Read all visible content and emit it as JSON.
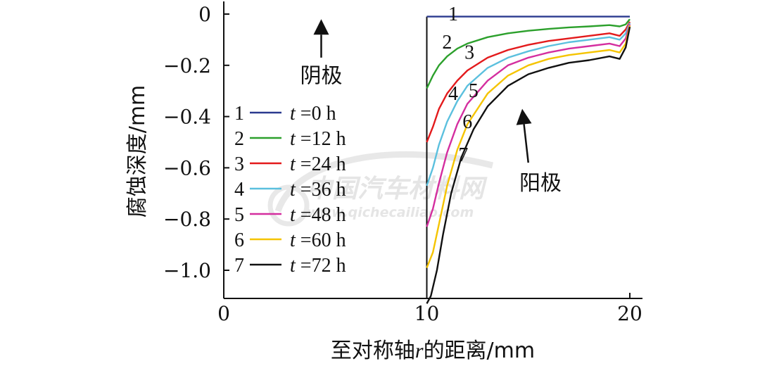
{
  "chart_data": {
    "type": "line",
    "xlabel": "至对称轴r的距离/mm",
    "xlabel_prefix": "至对称轴",
    "xlabel_var": "r",
    "xlabel_suffix": "的距离/mm",
    "ylabel": "腐蚀深度/mm",
    "xlim": [
      0,
      20
    ],
    "ylim": [
      -1.15,
      0.03
    ],
    "x_ticks": [
      0,
      10,
      20
    ],
    "x_tick_labels": [
      "0",
      "10",
      "20"
    ],
    "y_ticks": [
      0,
      -0.2,
      -0.4,
      -0.6,
      -0.8,
      -1.0
    ],
    "y_tick_labels": [
      "0",
      "−0.2",
      "−0.4",
      "−0.6",
      "−0.8",
      "−1.0"
    ],
    "grid": false,
    "legend_position": "left",
    "series": [
      {
        "name": "t =0 h",
        "number": "1",
        "var": "t",
        "rest": " =0 h",
        "color": "#2b3a8f",
        "x": [
          10,
          20
        ],
        "y": [
          -0.01,
          -0.01
        ]
      },
      {
        "name": "t =12 h",
        "number": "2",
        "var": "t",
        "rest": " =12 h",
        "color": "#2ca02c",
        "x": [
          10,
          10.3,
          10.6,
          11,
          11.5,
          12,
          13,
          14,
          15,
          16,
          17,
          18,
          19,
          19.5,
          19.8,
          20
        ],
        "y": [
          -0.29,
          -0.24,
          -0.2,
          -0.165,
          -0.135,
          -0.115,
          -0.09,
          -0.075,
          -0.065,
          -0.058,
          -0.052,
          -0.048,
          -0.043,
          -0.048,
          -0.04,
          -0.02
        ]
      },
      {
        "name": "t =24 h",
        "number": "3",
        "var": "t",
        "rest": " =24 h",
        "color": "#e31a1c",
        "x": [
          10,
          10.3,
          10.6,
          11,
          11.5,
          12,
          13,
          14,
          15,
          16,
          17,
          18,
          19,
          19.5,
          19.8,
          20
        ],
        "y": [
          -0.5,
          -0.44,
          -0.37,
          -0.31,
          -0.26,
          -0.22,
          -0.17,
          -0.14,
          -0.12,
          -0.105,
          -0.095,
          -0.085,
          -0.075,
          -0.085,
          -0.06,
          -0.03
        ]
      },
      {
        "name": "t =36 h",
        "number": "4",
        "var": "t",
        "rest": " =36 h",
        "color": "#5bc0de",
        "x": [
          10,
          10.3,
          10.6,
          11,
          11.5,
          12,
          13,
          14,
          15,
          16,
          17,
          18,
          19,
          19.5,
          19.8,
          20
        ],
        "y": [
          -0.67,
          -0.6,
          -0.51,
          -0.42,
          -0.34,
          -0.28,
          -0.21,
          -0.17,
          -0.145,
          -0.125,
          -0.11,
          -0.1,
          -0.09,
          -0.1,
          -0.075,
          -0.035
        ]
      },
      {
        "name": "t =48 h",
        "number": "5",
        "var": "t",
        "rest": " =48 h",
        "color": "#d42e9f",
        "x": [
          10,
          10.3,
          10.6,
          11,
          11.5,
          12,
          13,
          14,
          15,
          16,
          17,
          18,
          19,
          19.5,
          19.8,
          20
        ],
        "y": [
          -0.83,
          -0.76,
          -0.66,
          -0.54,
          -0.43,
          -0.35,
          -0.26,
          -0.2,
          -0.17,
          -0.15,
          -0.135,
          -0.125,
          -0.115,
          -0.125,
          -0.095,
          -0.04
        ]
      },
      {
        "name": "t =60 h",
        "number": "6",
        "var": "t",
        "rest": " =60 h",
        "color": "#f5c400",
        "x": [
          10,
          10.3,
          10.6,
          11,
          11.5,
          12,
          13,
          14,
          15,
          16,
          17,
          18,
          19,
          19.5,
          19.8,
          20
        ],
        "y": [
          -0.99,
          -0.93,
          -0.82,
          -0.67,
          -0.53,
          -0.43,
          -0.31,
          -0.24,
          -0.2,
          -0.175,
          -0.16,
          -0.15,
          -0.14,
          -0.15,
          -0.115,
          -0.045
        ]
      },
      {
        "name": "t =72 h",
        "number": "7",
        "var": "t",
        "rest": " =72 h",
        "color": "#111111",
        "x": [
          10,
          10.2,
          10.5,
          10.8,
          11.2,
          11.7,
          12.3,
          13,
          14,
          15,
          16,
          17,
          18,
          19,
          19.5,
          19.8,
          20
        ],
        "y": [
          -1.13,
          -1.1,
          -1.0,
          -0.86,
          -0.7,
          -0.56,
          -0.45,
          -0.36,
          -0.28,
          -0.235,
          -0.21,
          -0.19,
          -0.18,
          -0.165,
          -0.175,
          -0.13,
          -0.05
        ]
      }
    ],
    "curve_labels": [
      {
        "text": "1",
        "x": 11.3,
        "y": 0.0
      },
      {
        "text": "2",
        "x": 11.0,
        "y": -0.11
      },
      {
        "text": "3",
        "x": 12.1,
        "y": -0.15
      },
      {
        "text": "4",
        "x": 11.3,
        "y": -0.31
      },
      {
        "text": "5",
        "x": 12.3,
        "y": -0.3
      },
      {
        "text": "6",
        "x": 12.0,
        "y": -0.42
      },
      {
        "text": "7",
        "x": 11.8,
        "y": -0.55
      }
    ],
    "annotations": [
      {
        "text": "阴极",
        "x": 4.8,
        "y": -0.24,
        "arrow": "up",
        "arrow_from": [
          4.8,
          -0.17
        ],
        "arrow_to": [
          4.8,
          -0.02
        ]
      },
      {
        "text": "阳极",
        "x": 15.6,
        "y": -0.66,
        "arrow": "up",
        "arrow_from": [
          15.0,
          -0.58
        ],
        "arrow_to": [
          14.7,
          -0.37
        ]
      }
    ]
  },
  "watermark": {
    "text": "中国汽车材料网",
    "url": "www.qichecailiao.com"
  }
}
